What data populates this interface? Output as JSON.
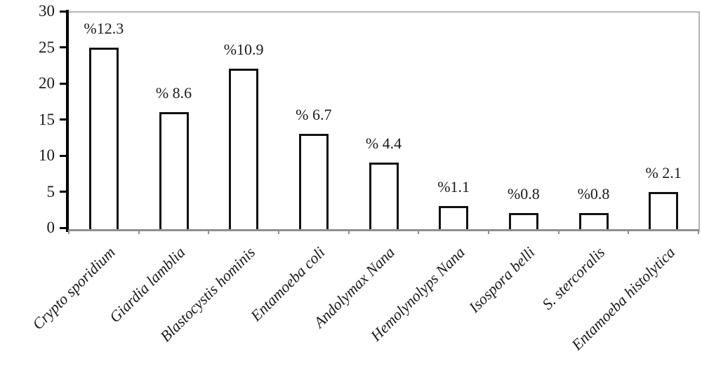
{
  "chart_data": {
    "type": "bar",
    "title": "",
    "xlabel": "",
    "ylabel": "",
    "categories": [
      "Crypto sporidium",
      "Giardia lamblia",
      "Blastocystis hominis",
      "Entamoeba coli",
      "Andolymax Nana",
      "Hemolynolyps Nana",
      "Isospora belli",
      "S. stercoralis",
      "Entamoeba histolytica"
    ],
    "values": [
      25,
      16,
      22,
      13,
      9,
      3,
      2,
      2,
      5
    ],
    "bar_labels": [
      "%12.3",
      "% 8.6",
      "%10.9",
      "% 6.7",
      "% 4.4",
      "%1.1",
      "%0.8",
      "%0.8",
      "% 2.1"
    ],
    "ylim": [
      0,
      30
    ],
    "yticks": [
      0,
      5,
      10,
      15,
      20,
      25,
      30
    ],
    "grid": "off",
    "legend": "none",
    "colors": {
      "bar_fill": "#ffffff",
      "bar_border": "#111111",
      "y_axis": "#000000",
      "frame": "#b5b5b5",
      "x_axis": "#8f8f8f",
      "text": "#1a1a1a"
    }
  }
}
